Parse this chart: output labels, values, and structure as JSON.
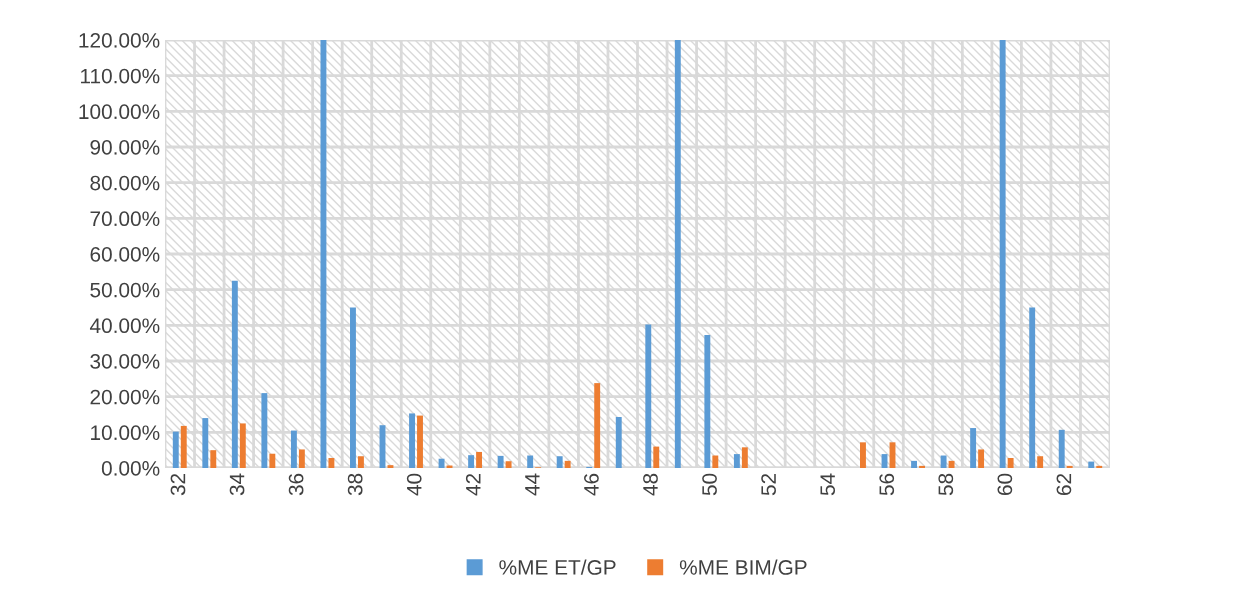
{
  "chart_data": {
    "type": "bar",
    "categories": [
      "32",
      null,
      "34",
      null,
      "36",
      null,
      "38",
      null,
      "40",
      null,
      "42",
      null,
      "44",
      null,
      "46",
      null,
      "48",
      null,
      "50",
      null,
      "52",
      null,
      "54",
      null,
      "56",
      null,
      "58",
      null,
      "60",
      null,
      "62",
      null
    ],
    "series": [
      {
        "name": "%ME ET/GP",
        "color": "#5b9bd5",
        "values": [
          10.2,
          14,
          52.5,
          21,
          10.5,
          120,
          45,
          12,
          15.3,
          2.6,
          3.6,
          3.4,
          3.5,
          3.3,
          0.3,
          14.3,
          40.2,
          120,
          37.3,
          3.9,
          0,
          0,
          0,
          0,
          3.9,
          2,
          3.5,
          11.2,
          120,
          45,
          10.7,
          1.8
        ]
      },
      {
        "name": "%ME BIM/GP",
        "color": "#ed7d31",
        "values": [
          11.8,
          5,
          12.5,
          4,
          5.2,
          2.8,
          3.3,
          0.8,
          14.7,
          0.7,
          4.5,
          1.9,
          0.2,
          2,
          23.8,
          0,
          6,
          0,
          3.5,
          5.8,
          0,
          0,
          0,
          7.2,
          7.2,
          0.6,
          2,
          5.2,
          2.8,
          3.3,
          0.6,
          0.6
        ]
      }
    ],
    "ylim": [
      0,
      120
    ],
    "yticks": [
      {
        "value": 0,
        "label": "0.00%"
      },
      {
        "value": 10,
        "label": "10.00%"
      },
      {
        "value": 20,
        "label": "20.00%"
      },
      {
        "value": 30,
        "label": "30.00%"
      },
      {
        "value": 40,
        "label": "40.00%"
      },
      {
        "value": 50,
        "label": "50.00%"
      },
      {
        "value": 60,
        "label": "60.00%"
      },
      {
        "value": 70,
        "label": "70.00%"
      },
      {
        "value": 80,
        "label": "80.00%"
      },
      {
        "value": 90,
        "label": "90.00%"
      },
      {
        "value": 100,
        "label": "100.00%"
      },
      {
        "value": 110,
        "label": "110.00%"
      },
      {
        "value": 120,
        "label": "120.00%"
      }
    ],
    "grid": true,
    "legend": "bottom"
  }
}
